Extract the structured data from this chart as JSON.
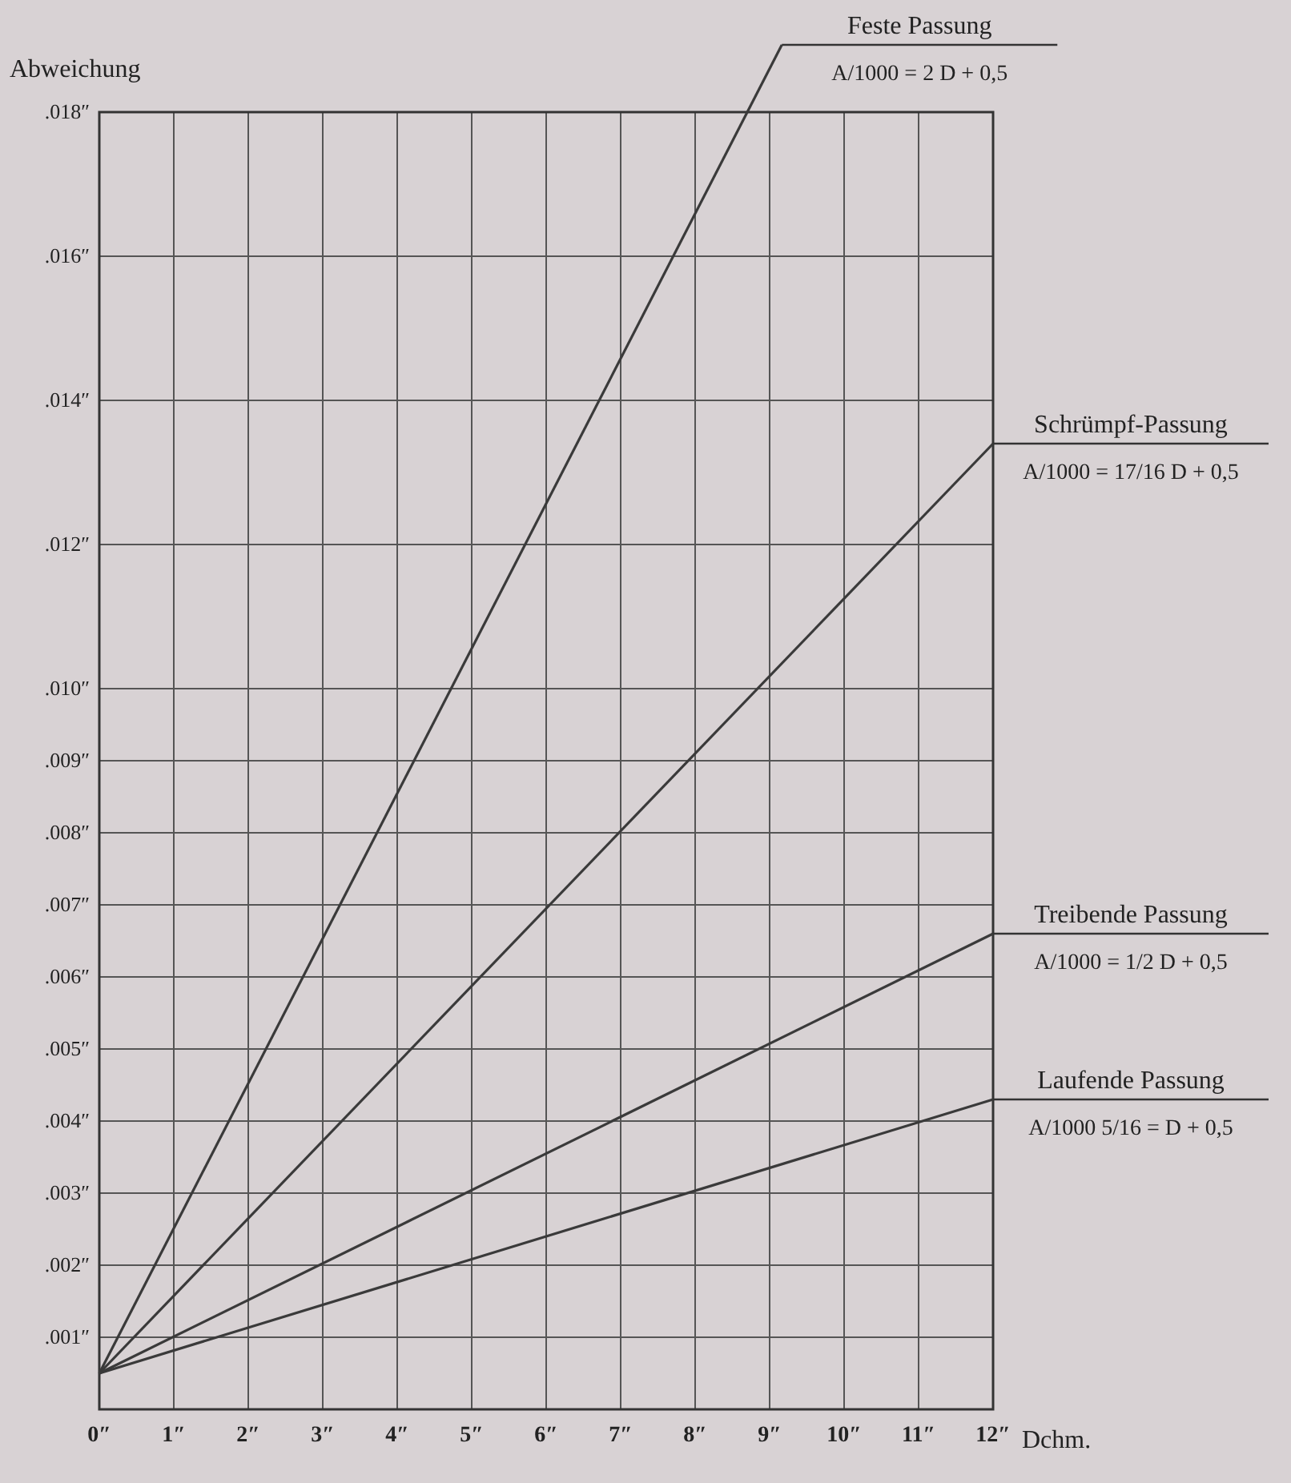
{
  "chart_data": {
    "type": "line",
    "xlabel": "Dchm.",
    "ylabel": "Abweichung",
    "xlim": [
      0,
      12
    ],
    "ylim": [
      0,
      0.018
    ],
    "xticks": [
      {
        "value": 0,
        "label": "0″"
      },
      {
        "value": 1,
        "label": "1″"
      },
      {
        "value": 2,
        "label": "2″"
      },
      {
        "value": 3,
        "label": "3″"
      },
      {
        "value": 4,
        "label": "4″"
      },
      {
        "value": 5,
        "label": "5″"
      },
      {
        "value": 6,
        "label": "6″"
      },
      {
        "value": 7,
        "label": "7″"
      },
      {
        "value": 8,
        "label": "8″"
      },
      {
        "value": 9,
        "label": "9″"
      },
      {
        "value": 10,
        "label": "10″"
      },
      {
        "value": 11,
        "label": "11″"
      },
      {
        "value": 12,
        "label": "12″"
      }
    ],
    "yticks": [
      {
        "value": 0.001,
        "label": ".001″"
      },
      {
        "value": 0.002,
        "label": ".002″"
      },
      {
        "value": 0.003,
        "label": ".003″"
      },
      {
        "value": 0.004,
        "label": ".004″"
      },
      {
        "value": 0.005,
        "label": ".005″"
      },
      {
        "value": 0.006,
        "label": ".006″"
      },
      {
        "value": 0.007,
        "label": ".007″"
      },
      {
        "value": 0.008,
        "label": ".008″"
      },
      {
        "value": 0.009,
        "label": ".009″"
      },
      {
        "value": 0.01,
        "label": ".010″"
      },
      {
        "value": 0.012,
        "label": ".012″"
      },
      {
        "value": 0.014,
        "label": ".014″"
      },
      {
        "value": 0.016,
        "label": ".016″"
      },
      {
        "value": 0.018,
        "label": ".018″"
      }
    ],
    "grid": true,
    "marker": "none",
    "line_style": "solid",
    "series": [
      {
        "name": "Feste Passung",
        "color": "#3a3a3a",
        "x": [
          0,
          8.7
        ],
        "values": [
          0.0005,
          0.018
        ]
      },
      {
        "name": "Schrümpf-Passung",
        "color": "#3a3a3a",
        "x": [
          0,
          12
        ],
        "values": [
          0.0005,
          0.0134
        ]
      },
      {
        "name": "Treibende Passung",
        "color": "#3a3a3a",
        "x": [
          0,
          12
        ],
        "values": [
          0.0005,
          0.0066
        ]
      },
      {
        "name": "Laufende Passung",
        "color": "#3a3a3a",
        "x": [
          0,
          12
        ],
        "values": [
          0.0005,
          0.0043
        ]
      }
    ],
    "annotations": [
      "A/1000 = 2 D + 0,5",
      "A/1000 = 17/16 D + 0,5",
      "A/1000 = 1/2 D + 0,5",
      "A/1000 5/16 = D + 0,5"
    ]
  }
}
